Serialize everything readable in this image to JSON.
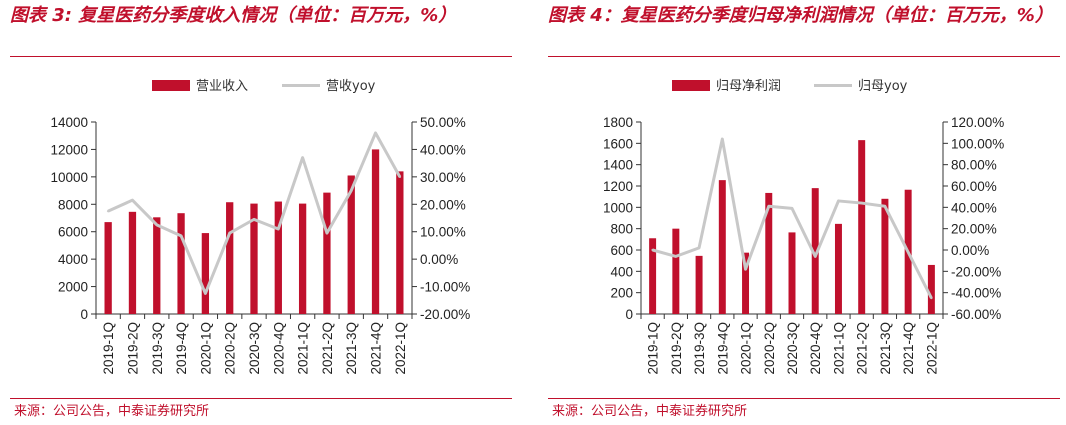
{
  "colors": {
    "bar": "#c0102c",
    "line": "#c8c8c8",
    "title": "#c0102c",
    "axis": "#333333"
  },
  "figures": [
    {
      "title": "图表 3: 复星医药分季度收入情况（单位：百万元，%）",
      "source": "来源：公司公告，中泰证券研究所"
    },
    {
      "title": "图表  4：复星医药分季度归母净利润情况（单位：百万元，%）",
      "source": "来源：公司公告，中泰证券研究所"
    }
  ],
  "chart_data": [
    {
      "type": "bar",
      "categories": [
        "2019-1Q",
        "2019-2Q",
        "2019-3Q",
        "2019-4Q",
        "2020-1Q",
        "2020-2Q",
        "2020-3Q",
        "2020-4Q",
        "2021-1Q",
        "2021-2Q",
        "2021-3Q",
        "2021-4Q",
        "2022-1Q"
      ],
      "series": [
        {
          "name": "营业收入",
          "type": "bar",
          "axis": "left",
          "values": [
            6700,
            7450,
            7050,
            7350,
            5900,
            8150,
            8050,
            8200,
            8050,
            8850,
            10100,
            12000,
            10400
          ]
        },
        {
          "name": "营收yoy",
          "type": "line",
          "axis": "right",
          "values": [
            17.5,
            21.5,
            12.5,
            8.5,
            -12.5,
            9.5,
            14.5,
            11.0,
            37.0,
            9.5,
            25.0,
            46.0,
            30.0
          ]
        }
      ],
      "y_left": {
        "lim": [
          0,
          14000
        ],
        "ticks": [
          0,
          2000,
          4000,
          6000,
          8000,
          10000,
          12000,
          14000
        ],
        "tick_labels": [
          "0",
          "2000",
          "4000",
          "6000",
          "8000",
          "10000",
          "12000",
          "14000"
        ]
      },
      "y_right": {
        "lim": [
          -20,
          50
        ],
        "ticks": [
          -20,
          -10,
          0,
          10,
          20,
          30,
          40,
          50
        ],
        "tick_labels": [
          "-20.00%",
          "-10.00%",
          "0.00%",
          "10.00%",
          "20.00%",
          "30.00%",
          "40.00%",
          "50.00%"
        ]
      },
      "legend": "top",
      "grid": false
    },
    {
      "type": "bar",
      "categories": [
        "2019-1Q",
        "2019-2Q",
        "2019-3Q",
        "2019-4Q",
        "2020-1Q",
        "2020-2Q",
        "2020-3Q",
        "2020-4Q",
        "2021-1Q",
        "2021-2Q",
        "2021-3Q",
        "2021-4Q",
        "2022-1Q"
      ],
      "series": [
        {
          "name": "归母净利润",
          "type": "bar",
          "axis": "left",
          "values": [
            710,
            800,
            545,
            1255,
            575,
            1135,
            765,
            1180,
            845,
            1630,
            1080,
            1165,
            460
          ]
        },
        {
          "name": "归母yoy",
          "type": "line",
          "axis": "right",
          "values": [
            0,
            -6,
            2,
            104,
            -18,
            41,
            39,
            -6,
            46,
            44,
            41,
            -2,
            -45
          ]
        }
      ],
      "y_left": {
        "lim": [
          0,
          1800
        ],
        "ticks": [
          0,
          200,
          400,
          600,
          800,
          1000,
          1200,
          1400,
          1600,
          1800
        ],
        "tick_labels": [
          "0",
          "200",
          "400",
          "600",
          "800",
          "1000",
          "1200",
          "1400",
          "1600",
          "1800"
        ]
      },
      "y_right": {
        "lim": [
          -60,
          120
        ],
        "ticks": [
          -60,
          -40,
          -20,
          0,
          20,
          40,
          60,
          80,
          100,
          120
        ],
        "tick_labels": [
          "-60.00%",
          "-40.00%",
          "-20.00%",
          "0.00%",
          "20.00%",
          "40.00%",
          "60.00%",
          "80.00%",
          "100.00%",
          "120.00%"
        ]
      },
      "legend": "top",
      "grid": false
    }
  ]
}
